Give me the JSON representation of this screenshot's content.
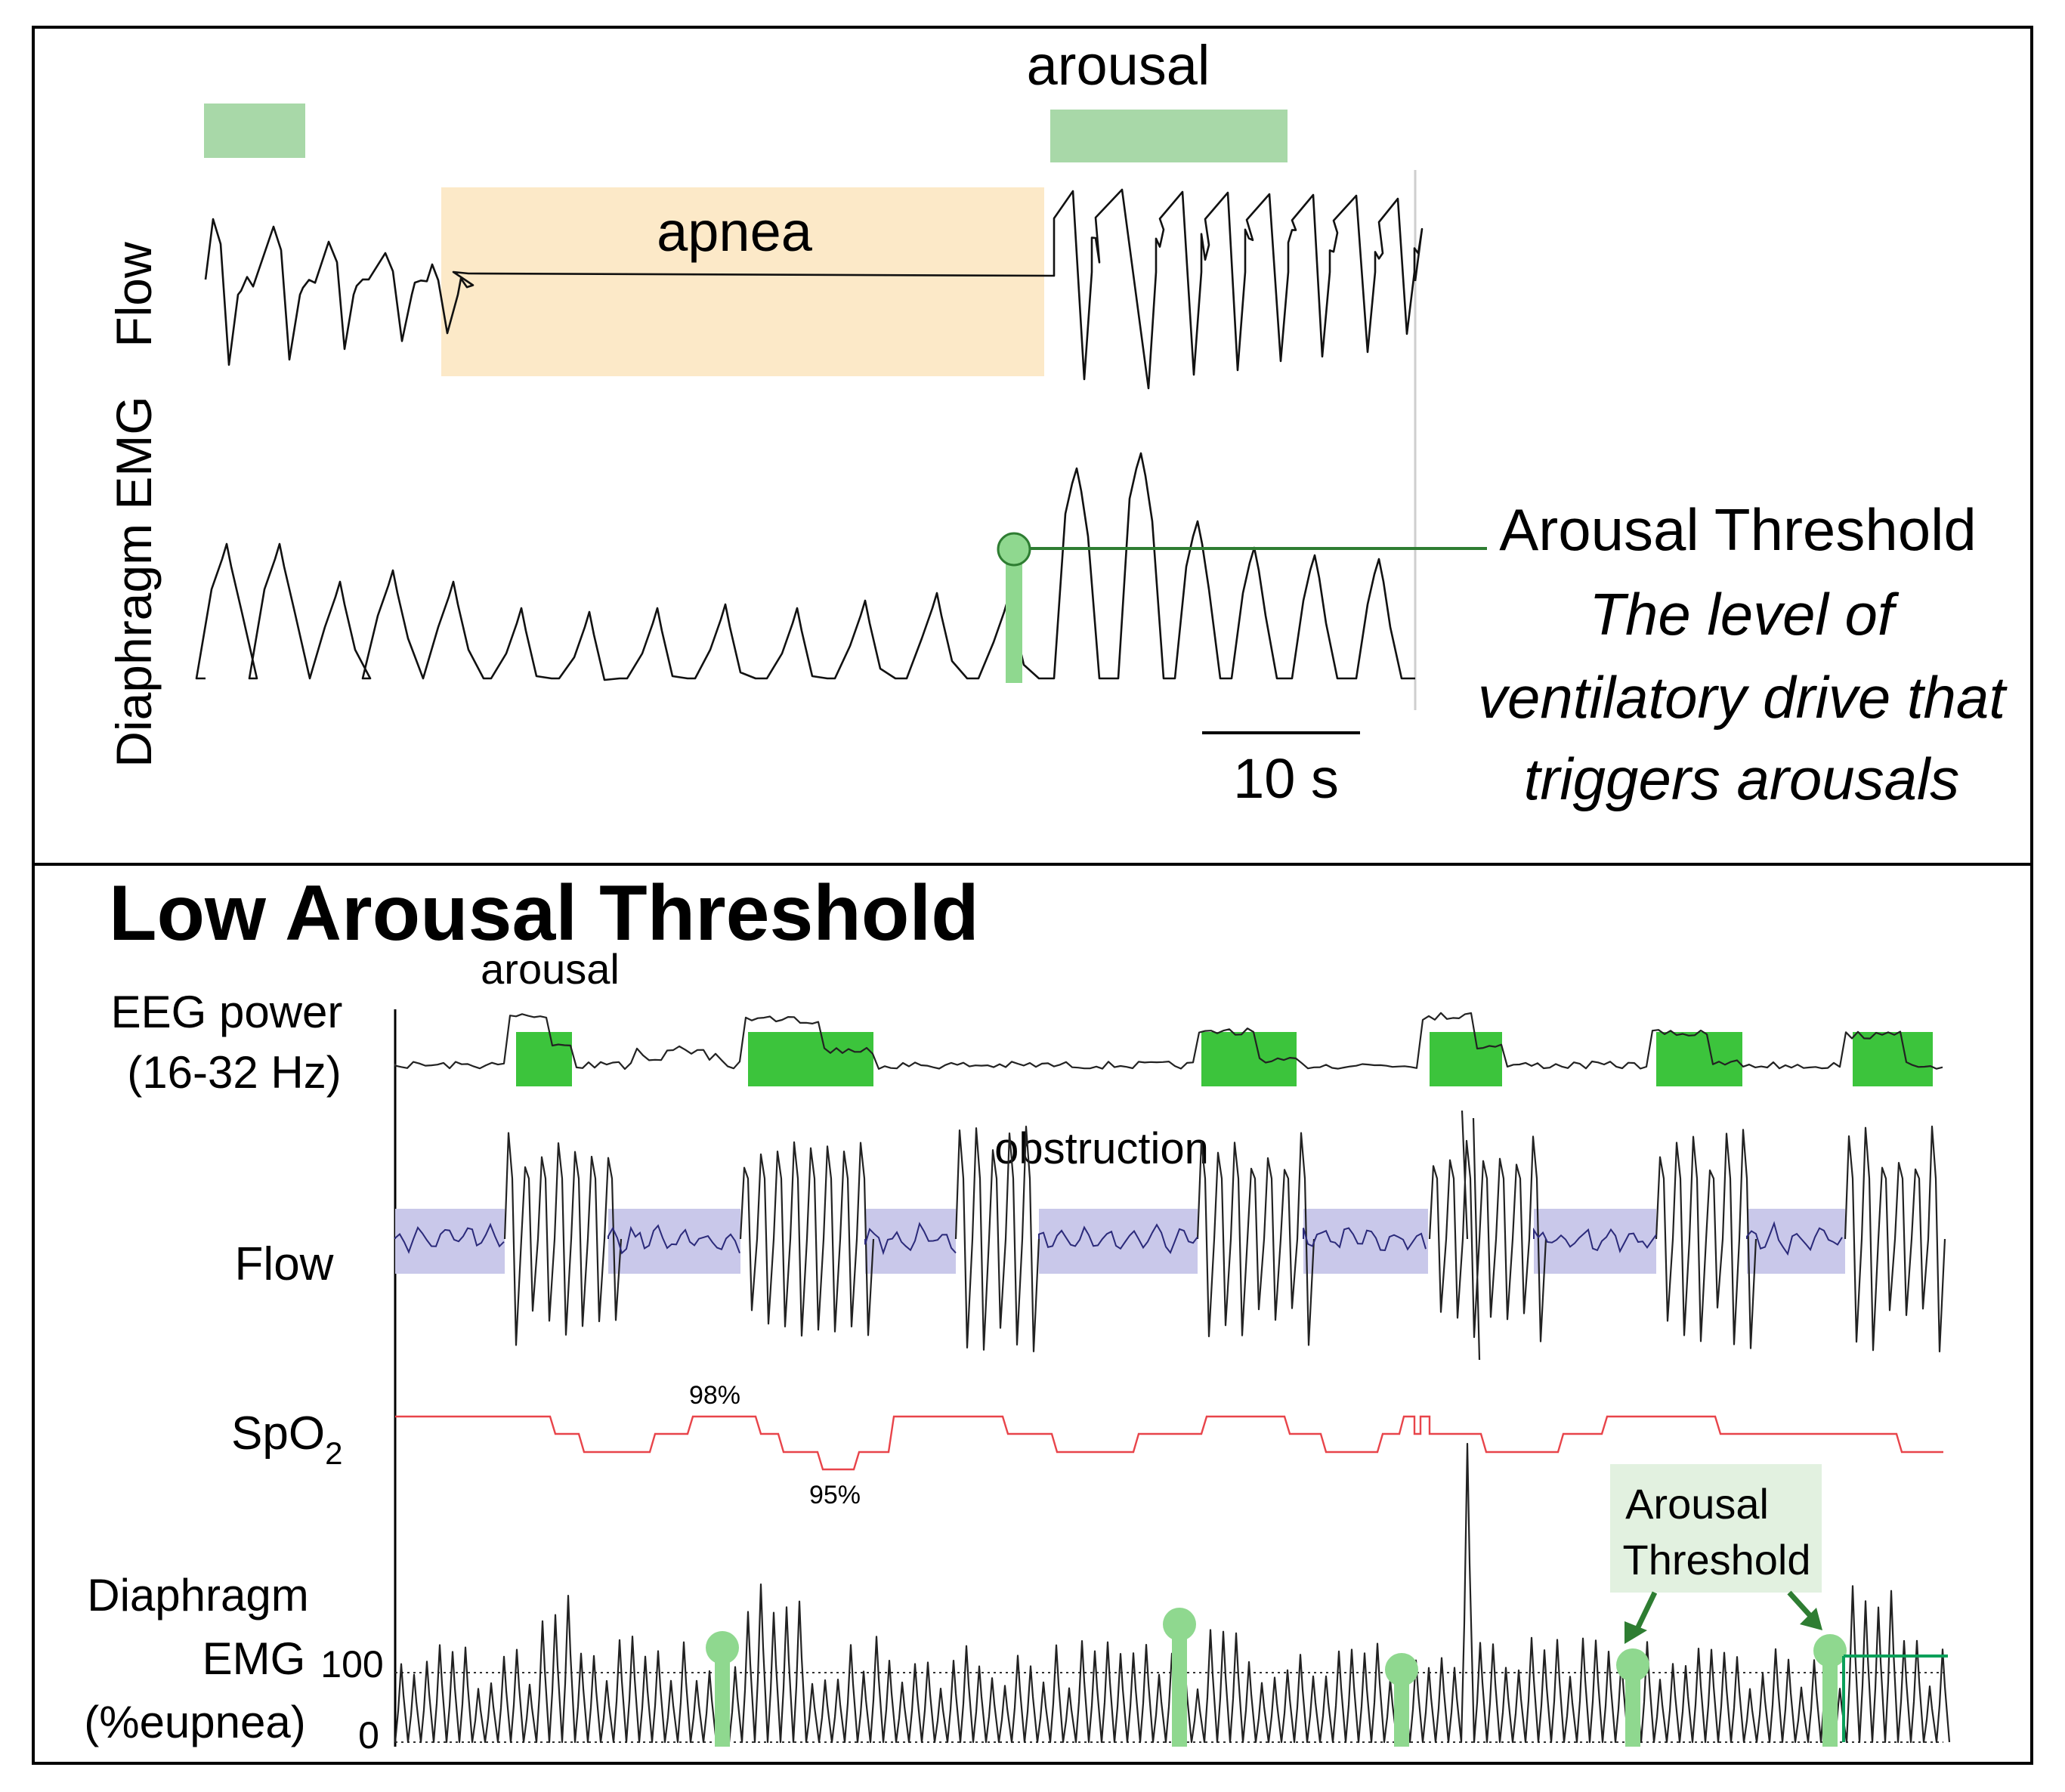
{
  "top_panel": {
    "arousal_label": "arousal",
    "apnea_label": "apnea",
    "flow_label": "Flow",
    "emg_label": "Diaphragm EMG",
    "scale_label": "10 s",
    "threshold_title": "Arousal Threshold",
    "threshold_desc": [
      "The level of",
      "ventilatory drive that",
      "triggers arousals"
    ]
  },
  "bottom_panel": {
    "title": "Low Arousal Threshold",
    "arousal_label": "arousal",
    "eeg_label": [
      "EEG power",
      "(16-32 Hz)"
    ],
    "obstruction_label": "obstruction",
    "flow_label": "Flow",
    "spo2_label": "SpO",
    "spo2_sub": "2",
    "spo2_max": "98%",
    "spo2_min": "95%",
    "emg_label": [
      "Diaphragm",
      "EMG",
      "(%eupnea)"
    ],
    "emg_tick_100": "100",
    "emg_tick_0": "0",
    "callout": [
      "Arousal",
      "Threshold"
    ]
  },
  "colors": {
    "arousal_bar": "#a8d8a8",
    "apnea_box": "#fce9c8",
    "threshold": "#2e7d32",
    "marker": "#8fd88f",
    "eeg_box": "#3cc43c",
    "obstruction_box": "#c9c8ea",
    "spo2_line": "#e8444a",
    "title_red": "#ff0000"
  }
}
